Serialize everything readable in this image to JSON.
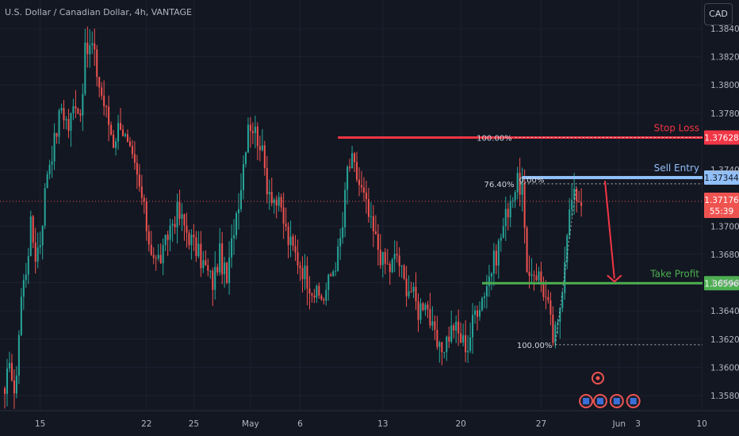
{
  "header": {
    "title": "U.S. Dollar / Canadian Dollar, 4h, VANTAGE",
    "currency_button": "CAD"
  },
  "colors": {
    "background": "#131722",
    "bull": "#26a69a",
    "bear": "#ef5350",
    "stop_loss": "#f23645",
    "sell_entry": "#90bff9",
    "take_profit": "#4caf50",
    "arrow": "#f23645",
    "axis_text": "#b2b5be",
    "dotted": "#d1d4dc"
  },
  "chart_data": {
    "type": "candlestick",
    "title": "U.S. Dollar / Canadian Dollar, 4h, VANTAGE",
    "interval": "4h",
    "y_range": [
      1.3572,
      1.3848
    ],
    "y_ticks": [
      "1.35800",
      "1.36000",
      "1.36200",
      "1.36400",
      "1.36600",
      "1.36800",
      "1.37000",
      "1.37400",
      "1.37800",
      "1.38000",
      "1.38200",
      "1.38400"
    ],
    "x_ticks": [
      {
        "label": "15",
        "slot": 15
      },
      {
        "label": "22",
        "slot": 60
      },
      {
        "label": "25",
        "slot": 80
      },
      {
        "label": "May",
        "slot": 104
      },
      {
        "label": "6",
        "slot": 125
      },
      {
        "label": "13",
        "slot": 160
      },
      {
        "label": "20",
        "slot": 193
      },
      {
        "label": "27",
        "slot": 227
      },
      {
        "label": "Jun",
        "slot": 260
      },
      {
        "label": "3",
        "slot": 268
      },
      {
        "label": "10",
        "slot": 295
      }
    ],
    "price_keypoints": [
      [
        0,
        1.3575
      ],
      [
        2,
        1.361
      ],
      [
        4,
        1.3575
      ],
      [
        7,
        1.365
      ],
      [
        9,
        1.367
      ],
      [
        11,
        1.37
      ],
      [
        13,
        1.368
      ],
      [
        15,
        1.369
      ],
      [
        18,
        1.374
      ],
      [
        21,
        1.376
      ],
      [
        24,
        1.3785
      ],
      [
        27,
        1.377
      ],
      [
        30,
        1.379
      ],
      [
        32,
        1.378
      ],
      [
        34,
        1.3822
      ],
      [
        37,
        1.3828
      ],
      [
        40,
        1.38
      ],
      [
        43,
        1.378
      ],
      [
        46,
        1.376
      ],
      [
        49,
        1.3775
      ],
      [
        52,
        1.3755
      ],
      [
        55,
        1.374
      ],
      [
        58,
        1.372
      ],
      [
        61,
        1.369
      ],
      [
        64,
        1.3675
      ],
      [
        67,
        1.368
      ],
      [
        70,
        1.37
      ],
      [
        73,
        1.371
      ],
      [
        76,
        1.37
      ],
      [
        79,
        1.369
      ],
      [
        82,
        1.368
      ],
      [
        85,
        1.367
      ],
      [
        88,
        1.366
      ],
      [
        91,
        1.368
      ],
      [
        94,
        1.366
      ],
      [
        97,
        1.37
      ],
      [
        100,
        1.373
      ],
      [
        103,
        1.3775
      ],
      [
        105,
        1.377
      ],
      [
        108,
        1.376
      ],
      [
        111,
        1.373
      ],
      [
        114,
        1.372
      ],
      [
        117,
        1.371
      ],
      [
        120,
        1.369
      ],
      [
        123,
        1.368
      ],
      [
        126,
        1.367
      ],
      [
        129,
        1.366
      ],
      [
        132,
        1.365
      ],
      [
        135,
        1.365
      ],
      [
        138,
        1.3665
      ],
      [
        141,
        1.368
      ],
      [
        143,
        1.37
      ],
      [
        145,
        1.374
      ],
      [
        147,
        1.3745
      ],
      [
        149,
        1.3735
      ],
      [
        152,
        1.372
      ],
      [
        155,
        1.37
      ],
      [
        157,
        1.369
      ],
      [
        160,
        1.3675
      ],
      [
        163,
        1.367
      ],
      [
        166,
        1.368
      ],
      [
        169,
        1.366
      ],
      [
        172,
        1.3655
      ],
      [
        175,
        1.364
      ],
      [
        178,
        1.365
      ],
      [
        181,
        1.3625
      ],
      [
        184,
        1.361
      ],
      [
        187,
        1.362
      ],
      [
        190,
        1.363
      ],
      [
        193,
        1.362
      ],
      [
        196,
        1.3615
      ],
      [
        199,
        1.364
      ],
      [
        202,
        1.365
      ],
      [
        205,
        1.3665
      ],
      [
        208,
        1.368
      ],
      [
        211,
        1.37
      ],
      [
        214,
        1.372
      ],
      [
        217,
        1.373
      ],
      [
        219,
        1.3728
      ],
      [
        221,
        1.366
      ],
      [
        223,
        1.367
      ],
      [
        226,
        1.3665
      ],
      [
        228,
        1.3655
      ],
      [
        230,
        1.3642
      ],
      [
        232,
        1.362
      ],
      [
        234,
        1.3628
      ],
      [
        236,
        1.366
      ],
      [
        238,
        1.37
      ],
      [
        240,
        1.3718
      ],
      [
        242,
        1.3722
      ],
      [
        244,
        1.3718
      ]
    ],
    "levels": [
      {
        "name": "Stop Loss",
        "value": 1.37628,
        "label": "1.37628",
        "line_label": "Stop Loss"
      },
      {
        "name": "Sell Entry",
        "value": 1.37344,
        "label": "1.37344",
        "line_label": "Sell Entry"
      },
      {
        "name": "Take Profit",
        "value": 1.36596,
        "label": "1.36596",
        "line_label": "Take Profit"
      }
    ],
    "current_price": {
      "value": 1.37176,
      "label": "1.37176",
      "countdown": "55:39"
    },
    "fibonacci": {
      "high": {
        "value": 1.37628,
        "label": "100.00%"
      },
      "mid": {
        "value": 1.373,
        "label": "76.40%"
      },
      "zero": {
        "value": 1.3733,
        "label": "0.00%"
      },
      "low": {
        "value": 1.3616,
        "label": "100.00%"
      }
    },
    "projection_arrow": {
      "from": 1.37344,
      "to": 1.36596
    }
  }
}
